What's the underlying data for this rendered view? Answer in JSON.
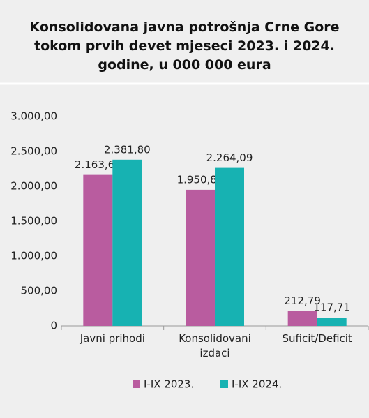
{
  "chart_data": {
    "type": "bar",
    "title": "Konsolidovana javna potrošnja Crne Gore tokom prvih devet mjeseci 2023. i 2024. godine, u 000 000 eura",
    "categories": [
      "Javni prihodi",
      "Konsolidovani izdaci",
      "Suficit/Deficit"
    ],
    "series": [
      {
        "name": "I-IX 2023.",
        "color": "#b95c9f",
        "values": [
          2163.68,
          1950.89,
          212.79
        ],
        "value_labels": [
          "2.163,68",
          "1.950,89",
          "212,79"
        ]
      },
      {
        "name": "I-IX 2024.",
        "color": "#17b2b2",
        "values": [
          2381.8,
          2264.09,
          117.71
        ],
        "value_labels": [
          "2.381,80",
          "2.264,09",
          "117,71"
        ]
      }
    ],
    "ylim": [
      0,
      3000
    ],
    "yticks": [
      0,
      {
        "value": 500,
        "label": "500,00"
      },
      {
        "value": 1000,
        "label": "1.000,00"
      },
      {
        "value": 1500,
        "label": "1.500,00"
      },
      {
        "value": 2000,
        "label": "2.000,00"
      },
      {
        "value": 2500,
        "label": "2.500,00"
      },
      {
        "value": 3000,
        "label": "3.000,00"
      }
    ],
    "legend": "bottom"
  }
}
